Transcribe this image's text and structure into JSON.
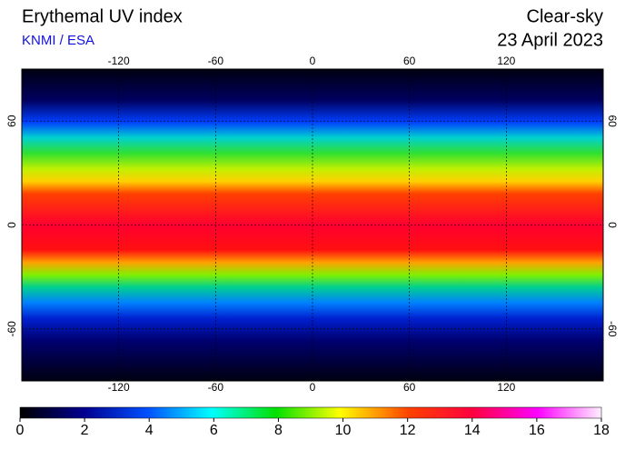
{
  "header": {
    "title": "Erythemal UV index",
    "source": "KNMI / ESA",
    "condition": "Clear-sky",
    "date": "23 April 2023"
  },
  "map": {
    "xlim": [
      -180,
      180
    ],
    "ylim": [
      -90,
      90
    ],
    "xticks": [
      -120,
      -60,
      0,
      60,
      120
    ],
    "yticks": [
      60,
      0,
      -60
    ]
  },
  "colorbar": {
    "lim": [
      0,
      18
    ],
    "ticks": [
      0,
      2,
      4,
      6,
      8,
      10,
      12,
      14,
      16,
      18
    ]
  }
}
